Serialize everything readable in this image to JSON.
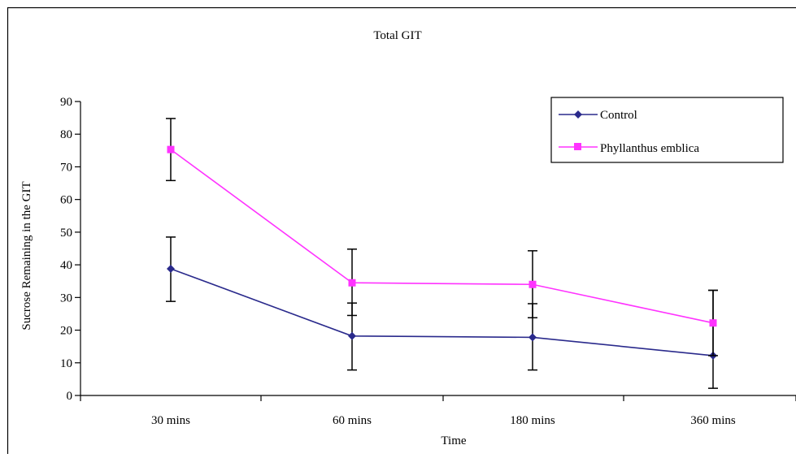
{
  "chart_data": {
    "type": "line",
    "title": "Total GIT",
    "xlabel": "Time",
    "ylabel": "Sucrose Remaining in the GIT",
    "categories": [
      "30 mins",
      "60 mins",
      "180 mins",
      "360 mins"
    ],
    "ylim": [
      0,
      90
    ],
    "yticks": [
      0,
      10,
      20,
      30,
      40,
      50,
      60,
      70,
      80,
      90
    ],
    "grid": false,
    "legend_position": "top-right",
    "series": [
      {
        "name": "Control",
        "color": "#2a2a8c",
        "marker": "diamond",
        "values": [
          38.8,
          18.2,
          17.8,
          12.2
        ],
        "error_bars": [
          [
            28.8,
            48.5
          ],
          [
            7.8,
            28.3
          ],
          [
            7.8,
            28.1
          ],
          [
            2.2,
            32.2
          ]
        ]
      },
      {
        "name": "Phyllanthus emblica",
        "color": "#ff33ff",
        "marker": "square",
        "values": [
          75.3,
          34.5,
          34.0,
          22.2
        ],
        "error_bars": [
          [
            65.8,
            84.8
          ],
          [
            24.5,
            44.8
          ],
          [
            23.8,
            44.3
          ],
          [
            12.2,
            32.2
          ]
        ]
      }
    ]
  }
}
